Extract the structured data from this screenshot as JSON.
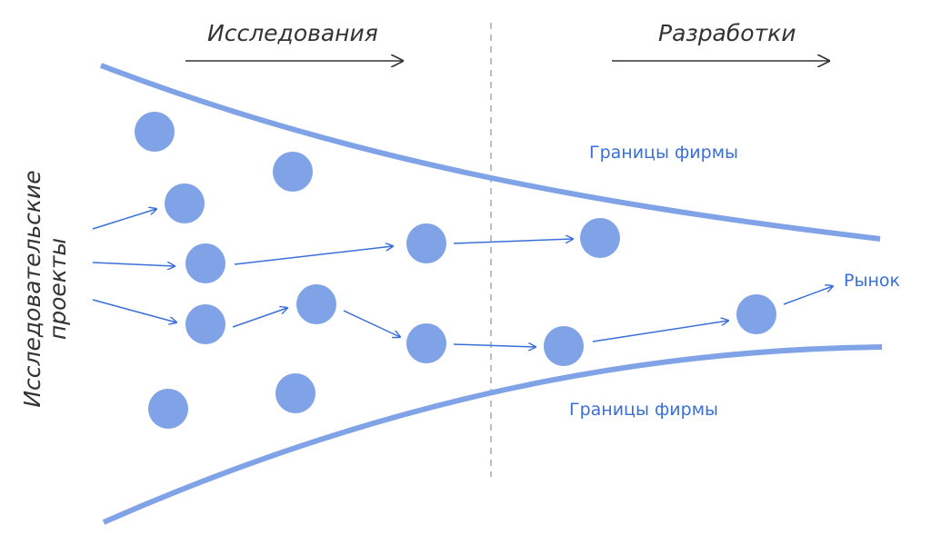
{
  "labels": {
    "research": "Исследования",
    "development": "Разработки",
    "projects_line1": "Исследовательские",
    "projects_line2": "проекты",
    "firm_boundary_top": "Границы фирмы",
    "firm_boundary_bottom": "Границы фирмы",
    "market": "Рынок"
  },
  "colors": {
    "boundary": "#7fa3e6",
    "node": "#7fa3e6",
    "arrow": "#3a6fd8",
    "label_blue": "#3a6fd8",
    "text_dark": "#333333",
    "divider": "#aaaaaa"
  }
}
